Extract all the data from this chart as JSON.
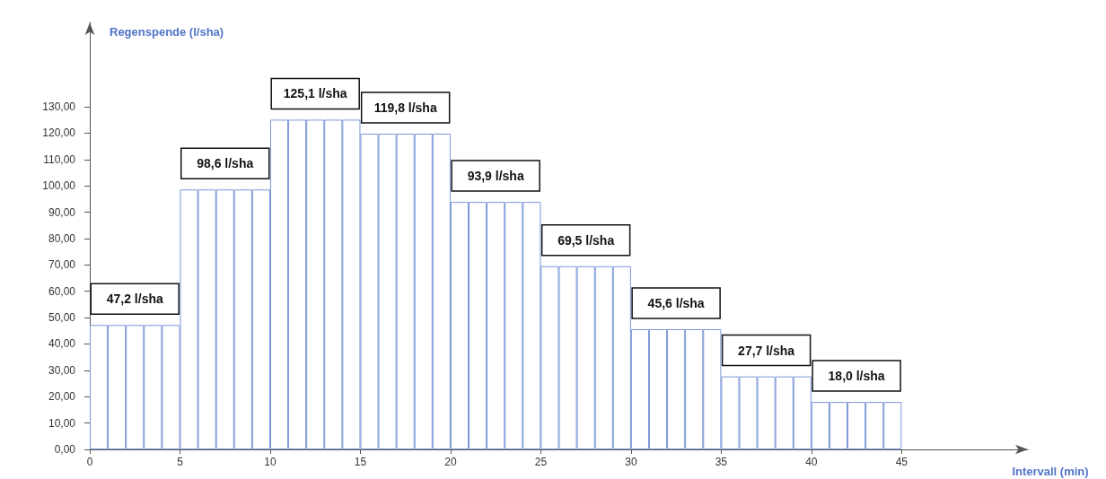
{
  "chart_data": {
    "type": "histogram",
    "xlabel": "Intervall (min)",
    "ylabel": "Regenspende (l/sha)",
    "color": "#7b96d8",
    "bins": [
      0,
      1,
      2,
      3,
      4,
      5,
      6,
      7,
      8,
      9,
      10,
      11,
      12,
      13,
      14,
      15,
      16,
      17,
      18,
      19,
      20,
      21,
      22,
      23,
      24,
      25,
      26,
      27,
      28,
      29,
      30,
      31,
      32,
      33,
      34,
      35,
      36,
      37,
      38,
      39,
      40,
      41,
      42,
      43,
      44,
      45
    ],
    "values": [
      47.2,
      47.2,
      47.2,
      47.2,
      47.2,
      98.6,
      98.6,
      98.6,
      98.6,
      98.6,
      125.1,
      125.1,
      125.1,
      125.1,
      125.1,
      119.8,
      119.8,
      119.8,
      119.8,
      119.8,
      93.9,
      93.9,
      93.9,
      93.9,
      93.9,
      69.5,
      69.5,
      69.5,
      69.5,
      69.5,
      45.6,
      45.6,
      45.6,
      45.6,
      45.6,
      27.7,
      27.7,
      27.7,
      27.7,
      27.7,
      18.0,
      18.0,
      18.0,
      18.0,
      18.0
    ],
    "xlim": [
      0,
      52
    ],
    "xticks": [
      0,
      5,
      10,
      15,
      20,
      25,
      30,
      35,
      40,
      45
    ],
    "ylim": [
      0,
      162
    ],
    "yticks": [
      {
        "value": 0,
        "label": "0,00"
      },
      {
        "value": 10,
        "label": "10,00"
      },
      {
        "value": 20,
        "label": "20,00"
      },
      {
        "value": 30,
        "label": "30,00"
      },
      {
        "value": 40,
        "label": "40,00"
      },
      {
        "value": 50,
        "label": "50,00"
      },
      {
        "value": 60,
        "label": "60,00"
      },
      {
        "value": 70,
        "label": "70,00"
      },
      {
        "value": 80,
        "label": "80,00"
      },
      {
        "value": 90,
        "label": "90,00"
      },
      {
        "value": 100,
        "label": "100,00"
      },
      {
        "value": 110,
        "label": "110,00"
      },
      {
        "value": 120,
        "label": "120,00"
      },
      {
        "value": 130,
        "label": "130,00"
      }
    ],
    "value_labels": [
      null,
      null,
      "47,2 l/sha",
      null,
      null,
      null,
      null,
      "98,6 l/sha",
      null,
      null,
      null,
      null,
      "125,1 l/sha",
      null,
      null,
      null,
      null,
      "119,8 l/sha",
      null,
      null,
      null,
      null,
      "93,9 l/sha",
      null,
      null,
      null,
      null,
      "69,5 l/sha",
      null,
      null,
      null,
      null,
      "45,6 l/sha",
      null,
      null,
      null,
      null,
      "27,7 l/sha",
      null,
      null,
      null,
      null,
      "18,0 l/sha",
      null,
      null
    ],
    "grid": false
  }
}
